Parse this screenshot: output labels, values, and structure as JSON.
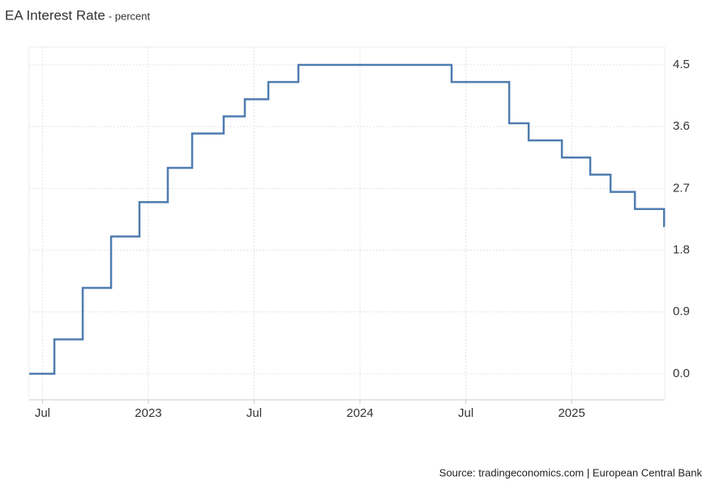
{
  "chart_data": {
    "type": "step",
    "title": "EA Interest Rate",
    "subtitle": "- percent",
    "source": "Source: tradingeconomics.com | European Central Bank",
    "series": [
      {
        "name": "EA Interest Rate",
        "color": "#4f7cb0",
        "x": [
          2022.437,
          2022.556,
          2022.69,
          2022.824,
          2022.958,
          2023.092,
          2023.207,
          2023.356,
          2023.456,
          2023.567,
          2023.709,
          2024.433,
          2024.705,
          2024.797,
          2024.954,
          2025.088,
          2025.184,
          2025.299,
          2025.437
        ],
        "values": [
          0,
          0.5,
          1.25,
          2,
          2.5,
          3,
          3.5,
          3.75,
          4,
          4.25,
          4.5,
          4.25,
          3.65,
          3.4,
          3.15,
          2.9,
          2.65,
          2.4,
          2.15
        ]
      }
    ],
    "xlim": [
      2022.437,
      2025.44
    ],
    "xticks": [
      {
        "value": 2022.5,
        "label": "Jul"
      },
      2023,
      {
        "value": 2023.5,
        "label": "Jul"
      },
      2024,
      {
        "value": 2024.5,
        "label": "Jul"
      },
      2025
    ],
    "ylim": [
      -0.38,
      4.76
    ],
    "yticks": [
      {
        "value": 0,
        "label": "0.0"
      },
      0.9,
      1.8,
      2.7,
      3.6,
      4.5
    ],
    "grid": true
  }
}
